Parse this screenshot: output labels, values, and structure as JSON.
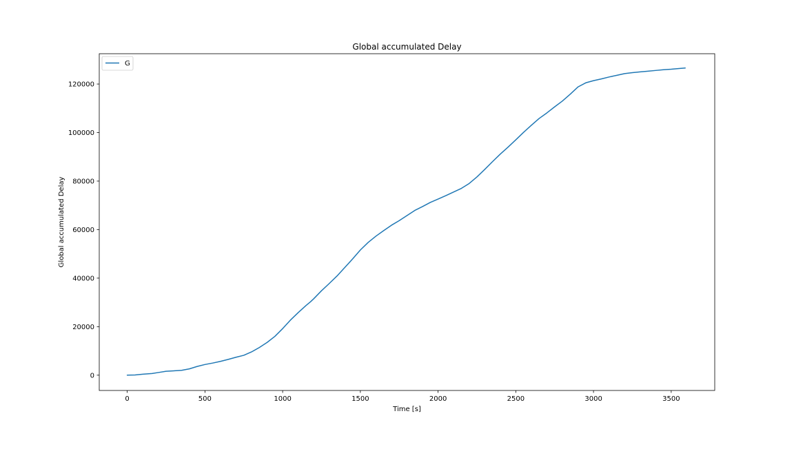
{
  "chart_data": {
    "type": "line",
    "title": "Global accumulated Delay",
    "xlabel": "Time [s]",
    "ylabel": "Global accumulated Delay",
    "xlim": [
      -180,
      3780
    ],
    "ylim": [
      -6300,
      132500
    ],
    "x_ticks": [
      0,
      500,
      1000,
      1500,
      2000,
      2500,
      3000,
      3500
    ],
    "x_tick_labels": [
      "0",
      "500",
      "1000",
      "1500",
      "2000",
      "2500",
      "3000",
      "3500"
    ],
    "y_ticks": [
      0,
      20000,
      40000,
      60000,
      80000,
      100000,
      120000
    ],
    "y_tick_labels": [
      "0",
      "20000",
      "40000",
      "60000",
      "80000",
      "100000",
      "120000"
    ],
    "grid": false,
    "legend_position": "upper left",
    "series": [
      {
        "name": "G",
        "color": "#1f77b4",
        "x": [
          0,
          50,
          100,
          160,
          200,
          250,
          300,
          350,
          400,
          450,
          500,
          550,
          600,
          650,
          700,
          750,
          800,
          850,
          900,
          950,
          1000,
          1050,
          1100,
          1150,
          1180,
          1200,
          1250,
          1300,
          1350,
          1400,
          1450,
          1500,
          1550,
          1600,
          1650,
          1700,
          1750,
          1800,
          1850,
          1900,
          1950,
          2000,
          2050,
          2100,
          2150,
          2200,
          2250,
          2300,
          2350,
          2400,
          2450,
          2500,
          2550,
          2600,
          2650,
          2700,
          2750,
          2800,
          2850,
          2900,
          2950,
          3000,
          3050,
          3100,
          3150,
          3200,
          3250,
          3300,
          3350,
          3400,
          3450,
          3500,
          3550,
          3590
        ],
        "y": [
          0,
          100,
          400,
          700,
          1100,
          1600,
          1800,
          2000,
          2600,
          3600,
          4400,
          5000,
          5700,
          6500,
          7400,
          8200,
          9600,
          11400,
          13500,
          16000,
          19200,
          22700,
          25800,
          28700,
          30300,
          31500,
          34800,
          37800,
          40900,
          44400,
          47900,
          51600,
          54700,
          57300,
          59600,
          61800,
          63700,
          65800,
          67900,
          69500,
          71200,
          72600,
          74000,
          75500,
          77000,
          79000,
          81700,
          84800,
          88000,
          91100,
          94000,
          97000,
          100100,
          103000,
          105800,
          108100,
          110600,
          113000,
          115800,
          118800,
          120500,
          121400,
          122100,
          122900,
          123600,
          124300,
          124700,
          125000,
          125300,
          125600,
          125900,
          126100,
          126400,
          126600
        ]
      }
    ]
  }
}
